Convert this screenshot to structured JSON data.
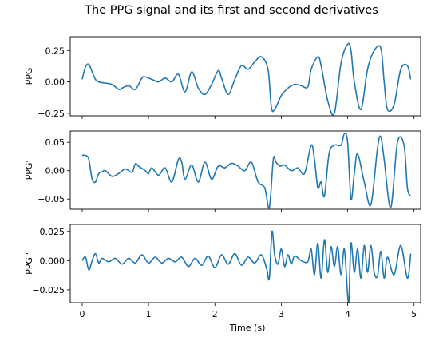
{
  "chart_data": {
    "type": "line",
    "title": "The PPG signal and its first and second derivatives",
    "xlabel": "Time (s)",
    "xlim": [
      -0.18,
      5.1
    ],
    "xticks": [
      0,
      1,
      2,
      3,
      4,
      5
    ],
    "xtick_labels": [
      "0",
      "1",
      "2",
      "3",
      "4",
      "5"
    ],
    "color": "#1f77b4",
    "grid": false,
    "panels": [
      {
        "ylabel": "PPG",
        "ylim": [
          -0.27,
          0.36
        ],
        "yticks": [
          -0.25,
          0,
          0.25
        ],
        "ytick_labels": [
          "−0.25",
          "0.00",
          "0.25"
        ],
        "x": [
          0,
          0.05,
          0.1,
          0.15,
          0.2,
          0.25,
          0.35,
          0.45,
          0.55,
          0.6,
          0.7,
          0.8,
          0.9,
          0.95,
          1.05,
          1.15,
          1.25,
          1.35,
          1.45,
          1.55,
          1.65,
          1.75,
          1.85,
          1.95,
          2.05,
          2.1,
          2.2,
          2.3,
          2.4,
          2.5,
          2.6,
          2.7,
          2.8,
          2.85,
          2.9,
          3.0,
          3.1,
          3.2,
          3.3,
          3.4,
          3.45,
          3.55,
          3.6,
          3.7,
          3.8,
          3.9,
          4.0,
          4.05,
          4.1,
          4.2,
          4.3,
          4.4,
          4.5,
          4.55,
          4.6,
          4.7,
          4.8,
          4.9,
          4.95
        ],
        "values": [
          0.02,
          0.12,
          0.14,
          0.08,
          0.02,
          0.0,
          -0.01,
          -0.02,
          -0.06,
          -0.05,
          -0.03,
          -0.06,
          0.03,
          0.04,
          0.02,
          0.0,
          0.03,
          0.0,
          0.06,
          -0.08,
          0.08,
          -0.05,
          -0.1,
          -0.02,
          0.09,
          0.03,
          -0.1,
          0.02,
          0.13,
          0.1,
          0.16,
          0.2,
          0.1,
          -0.2,
          -0.22,
          -0.11,
          -0.05,
          -0.02,
          -0.03,
          -0.04,
          0.1,
          0.2,
          0.13,
          -0.15,
          -0.25,
          0.15,
          0.3,
          0.25,
          0.0,
          -0.22,
          0.1,
          0.25,
          0.27,
          0.0,
          -0.22,
          -0.18,
          0.1,
          0.13,
          0.02
        ]
      },
      {
        "ylabel": "PPG'",
        "ylim": [
          -0.068,
          0.07
        ],
        "yticks": [
          -0.05,
          0,
          0.05
        ],
        "ytick_labels": [
          "−0.05",
          "0.00",
          "0.05"
        ],
        "x": [
          0,
          0.05,
          0.1,
          0.15,
          0.2,
          0.25,
          0.3,
          0.35,
          0.45,
          0.55,
          0.65,
          0.75,
          0.8,
          0.85,
          0.95,
          1.0,
          1.05,
          1.15,
          1.25,
          1.35,
          1.45,
          1.5,
          1.55,
          1.65,
          1.75,
          1.85,
          1.95,
          2.05,
          2.15,
          2.25,
          2.35,
          2.45,
          2.55,
          2.65,
          2.75,
          2.82,
          2.88,
          2.92,
          2.98,
          3.05,
          3.15,
          3.25,
          3.35,
          3.45,
          3.5,
          3.55,
          3.6,
          3.65,
          3.72,
          3.8,
          3.9,
          3.95,
          4.0,
          4.05,
          4.1,
          4.15,
          4.25,
          4.35,
          4.45,
          4.5,
          4.55,
          4.65,
          4.75,
          4.85,
          4.9,
          4.95
        ],
        "values": [
          0.027,
          0.027,
          0.02,
          -0.015,
          -0.02,
          -0.005,
          -0.002,
          0.0,
          -0.01,
          -0.005,
          0.003,
          -0.003,
          0.012,
          0.008,
          0.0,
          -0.005,
          0.005,
          -0.008,
          0.005,
          -0.02,
          0.02,
          0.015,
          -0.015,
          0.01,
          -0.02,
          0.015,
          -0.015,
          0.008,
          0.005,
          0.013,
          0.008,
          0.0,
          0.015,
          -0.02,
          -0.03,
          -0.065,
          0.02,
          0.015,
          0.008,
          0.01,
          0.0,
          0.005,
          -0.005,
          0.045,
          0.02,
          -0.03,
          -0.02,
          -0.045,
          0.03,
          0.045,
          0.045,
          0.065,
          0.05,
          -0.05,
          -0.005,
          0.03,
          -0.02,
          -0.06,
          0.04,
          0.06,
          0.02,
          -0.065,
          0.05,
          0.045,
          -0.03,
          -0.045
        ]
      },
      {
        "ylabel": "PPG''",
        "ylim": [
          -0.036,
          0.031
        ],
        "yticks": [
          -0.025,
          0,
          0.025
        ],
        "ytick_labels": [
          "−0.025",
          "0.000",
          "0.025"
        ],
        "x": [
          0,
          0.05,
          0.1,
          0.15,
          0.2,
          0.25,
          0.3,
          0.4,
          0.5,
          0.6,
          0.7,
          0.8,
          0.9,
          1.0,
          1.1,
          1.2,
          1.3,
          1.4,
          1.5,
          1.6,
          1.7,
          1.8,
          1.9,
          2.0,
          2.1,
          2.2,
          2.3,
          2.4,
          2.5,
          2.6,
          2.7,
          2.78,
          2.82,
          2.86,
          2.9,
          2.95,
          3.0,
          3.05,
          3.1,
          3.15,
          3.2,
          3.3,
          3.4,
          3.45,
          3.5,
          3.55,
          3.6,
          3.65,
          3.7,
          3.75,
          3.8,
          3.85,
          3.9,
          3.95,
          4.0,
          4.02,
          4.05,
          4.1,
          4.15,
          4.2,
          4.25,
          4.3,
          4.35,
          4.4,
          4.45,
          4.5,
          4.55,
          4.6,
          4.7,
          4.8,
          4.9,
          4.95
        ],
        "values": [
          0.0,
          0.003,
          -0.008,
          0.0,
          0.006,
          -0.002,
          0.002,
          -0.001,
          0.002,
          -0.003,
          0.002,
          -0.002,
          0.005,
          -0.002,
          0.003,
          -0.002,
          0.002,
          -0.001,
          0.003,
          -0.005,
          0.002,
          -0.004,
          0.004,
          -0.006,
          0.005,
          -0.003,
          0.006,
          -0.004,
          0.003,
          -0.002,
          0.005,
          -0.007,
          -0.015,
          0.025,
          0.005,
          -0.003,
          0.01,
          -0.005,
          0.005,
          -0.003,
          0.004,
          0.0,
          -0.001,
          0.01,
          -0.012,
          0.015,
          -0.015,
          0.018,
          -0.01,
          0.012,
          -0.005,
          0.012,
          -0.012,
          0.01,
          -0.03,
          -0.034,
          0.015,
          -0.01,
          0.01,
          -0.015,
          0.013,
          -0.01,
          0.013,
          -0.01,
          -0.013,
          0.008,
          -0.015,
          0.003,
          -0.012,
          0.013,
          -0.015,
          0.006
        ]
      }
    ]
  }
}
